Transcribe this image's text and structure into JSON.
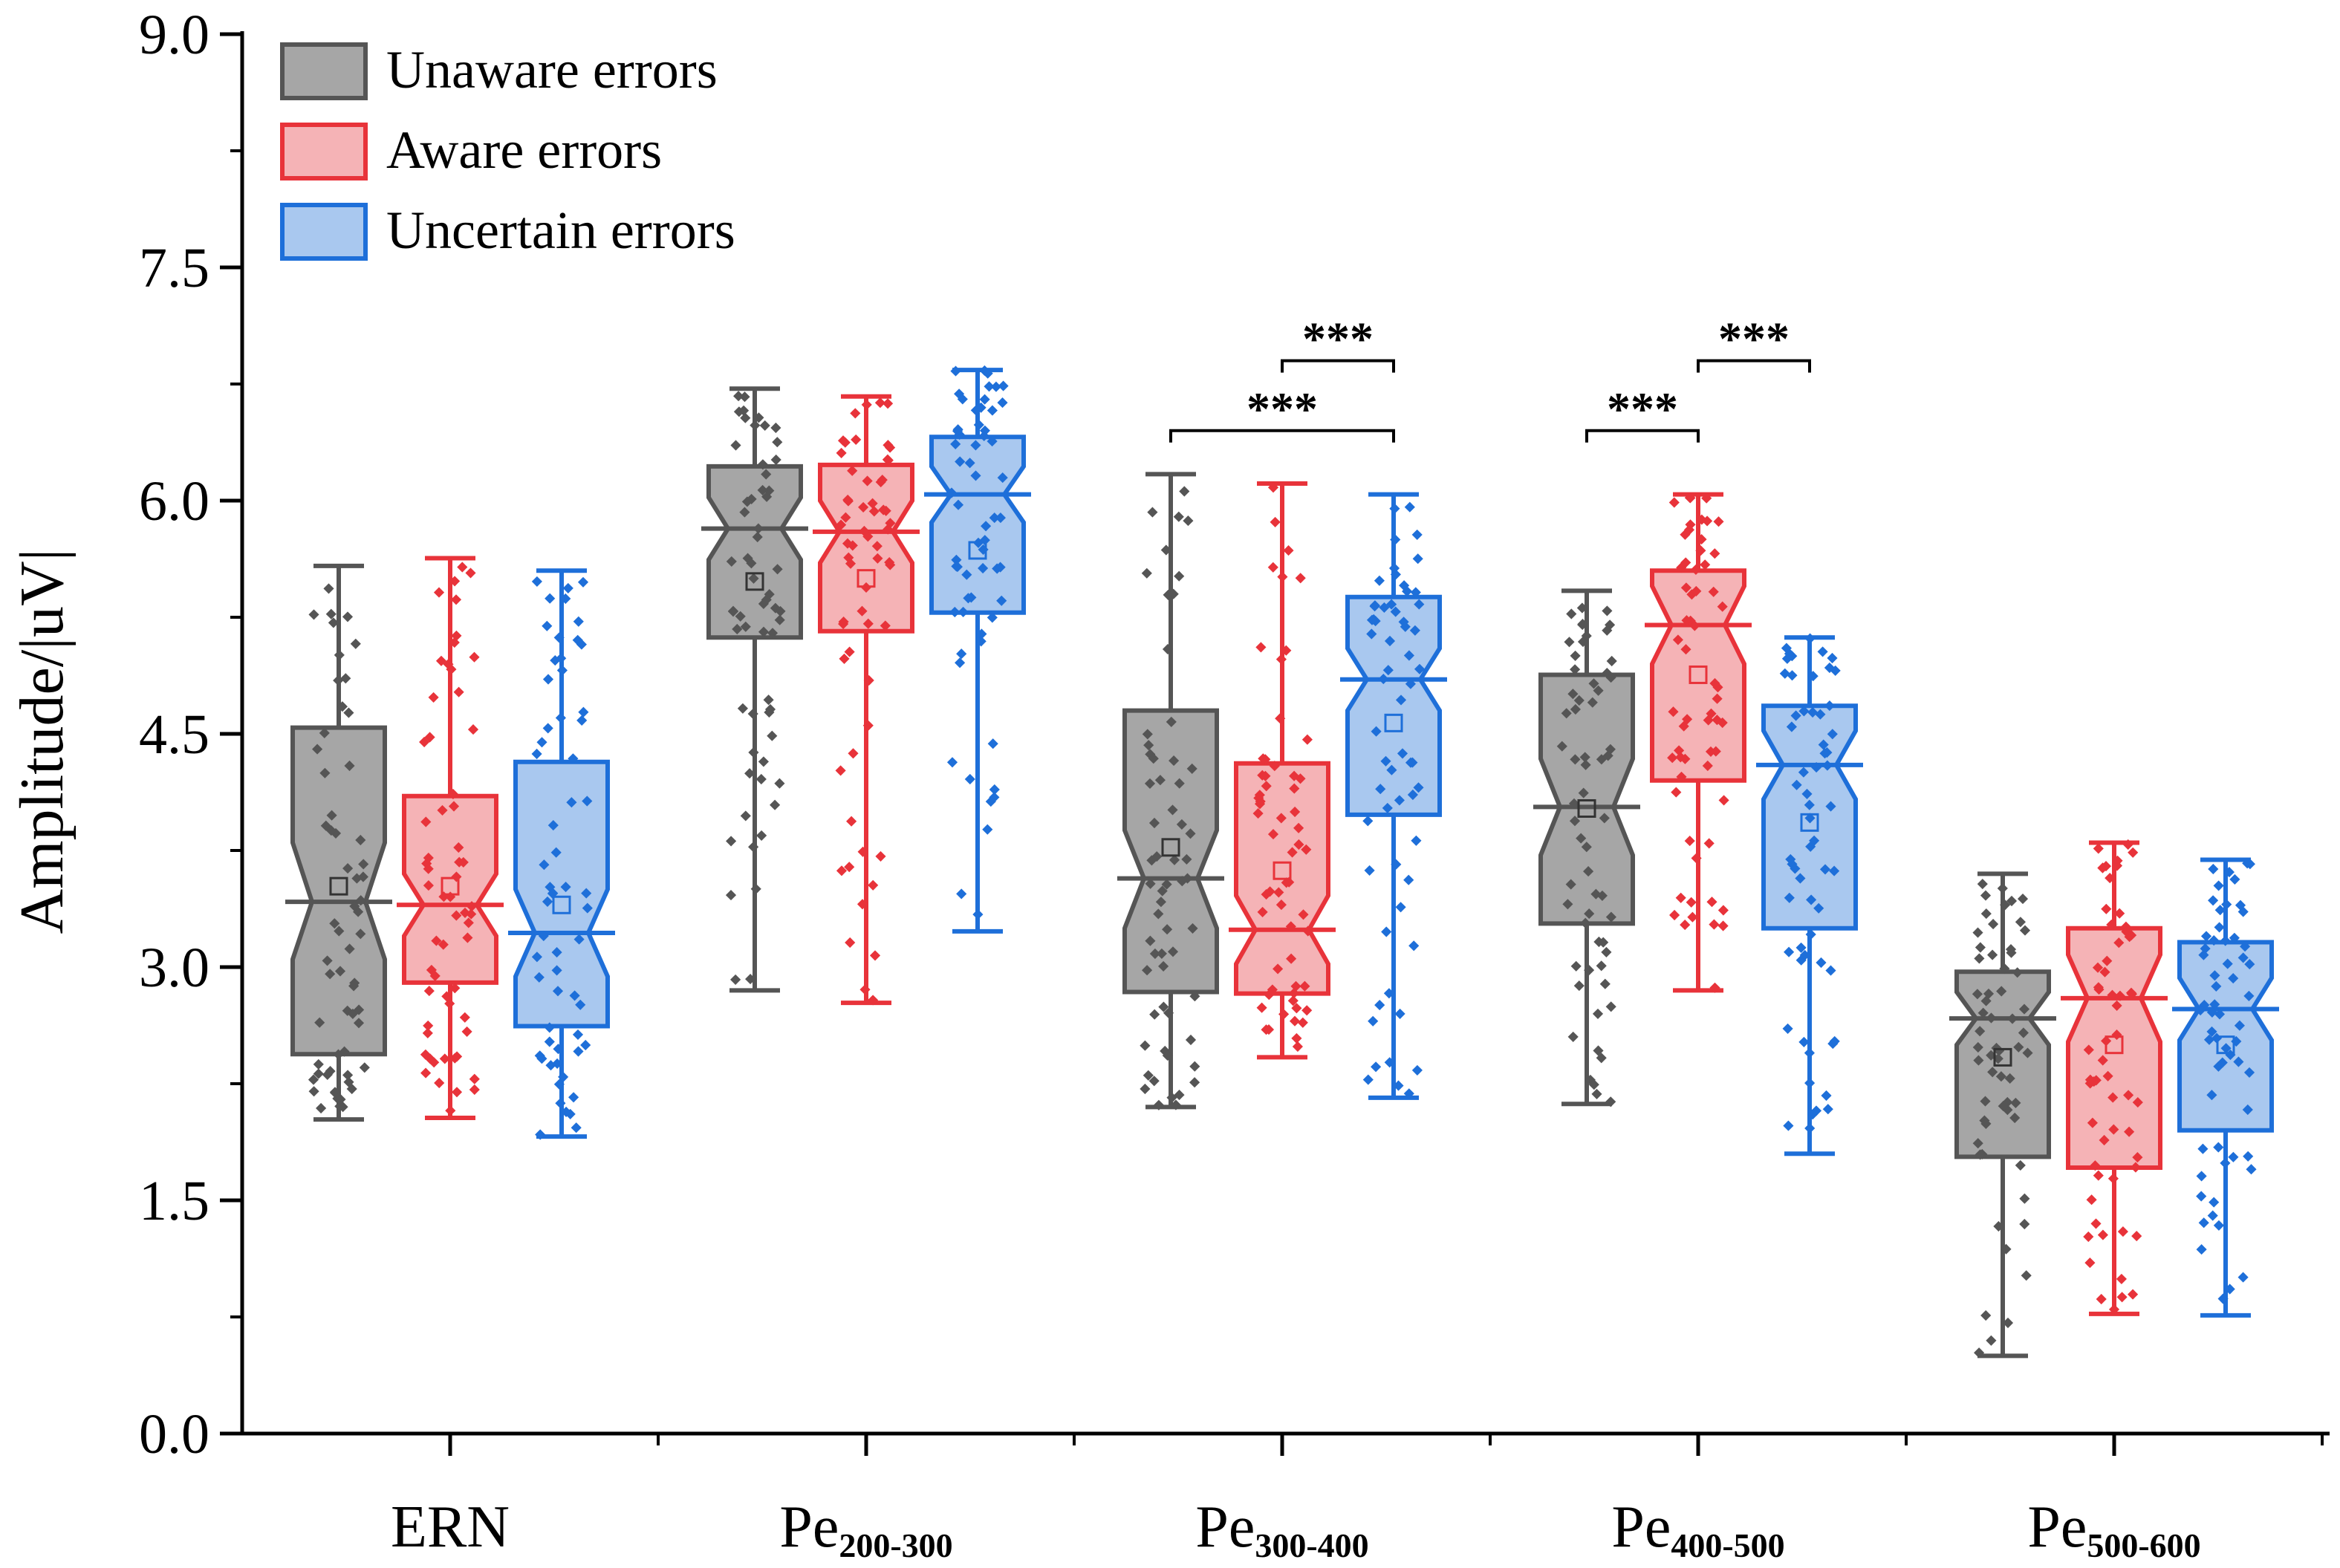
{
  "chart_data": {
    "type": "box",
    "ylabel": "Amplitude/|uV|",
    "ylim": [
      0,
      9.0
    ],
    "yticks": [
      "0.0",
      "1.5",
      "3.0",
      "4.5",
      "6.0",
      "7.5",
      "9.0"
    ],
    "categories": [
      {
        "main": "ERN",
        "sub": ""
      },
      {
        "main": "Pe",
        "sub": "200-300"
      },
      {
        "main": "Pe",
        "sub": "300-400"
      },
      {
        "main": "Pe",
        "sub": "400-500"
      },
      {
        "main": "Pe",
        "sub": "500-600"
      }
    ],
    "legend_position": "top-left",
    "series": [
      {
        "name": "Unaware errors",
        "color": "#555555",
        "fill": "#a6a6a6",
        "stats": [
          {
            "min": 2.02,
            "q1": 2.44,
            "median": 3.42,
            "q3": 4.54,
            "max": 5.58,
            "mean": 3.52,
            "notch_lo": 3.05,
            "notch_hi": 3.8
          },
          {
            "min": 2.85,
            "q1": 5.12,
            "median": 5.82,
            "q3": 6.22,
            "max": 6.72,
            "mean": 5.48,
            "notch_lo": 5.62,
            "notch_hi": 6.02
          },
          {
            "min": 2.1,
            "q1": 2.84,
            "median": 3.57,
            "q3": 4.65,
            "max": 6.17,
            "mean": 3.77,
            "notch_lo": 3.25,
            "notch_hi": 3.88
          },
          {
            "min": 2.12,
            "q1": 3.28,
            "median": 4.03,
            "q3": 4.88,
            "max": 5.42,
            "mean": 4.02,
            "notch_lo": 3.72,
            "notch_hi": 4.34
          },
          {
            "min": 0.5,
            "q1": 1.78,
            "median": 2.67,
            "q3": 2.97,
            "max": 3.6,
            "mean": 2.42,
            "notch_lo": 2.5,
            "notch_hi": 2.84
          }
        ]
      },
      {
        "name": "Aware errors",
        "color": "#e8333a",
        "fill": "#f5b3b6",
        "stats": [
          {
            "min": 2.03,
            "q1": 2.9,
            "median": 3.4,
            "q3": 4.1,
            "max": 5.63,
            "mean": 3.52,
            "notch_lo": 3.2,
            "notch_hi": 3.6
          },
          {
            "min": 2.77,
            "q1": 5.16,
            "median": 5.8,
            "q3": 6.23,
            "max": 6.67,
            "mean": 5.5,
            "notch_lo": 5.6,
            "notch_hi": 6.0
          },
          {
            "min": 2.42,
            "q1": 2.83,
            "median": 3.24,
            "q3": 4.31,
            "max": 6.11,
            "mean": 3.62,
            "notch_lo": 3.02,
            "notch_hi": 3.46
          },
          {
            "min": 2.85,
            "q1": 4.2,
            "median": 5.2,
            "q3": 5.55,
            "max": 6.04,
            "mean": 4.88,
            "notch_lo": 4.95,
            "notch_hi": 5.45
          },
          {
            "min": 0.77,
            "q1": 1.71,
            "median": 2.8,
            "q3": 3.25,
            "max": 3.8,
            "mean": 2.5,
            "notch_lo": 2.52,
            "notch_hi": 3.08
          }
        ]
      },
      {
        "name": "Uncertain errors",
        "color": "#1e6fd9",
        "fill": "#a9c8ef",
        "stats": [
          {
            "min": 1.91,
            "q1": 2.62,
            "median": 3.22,
            "q3": 4.32,
            "max": 5.55,
            "mean": 3.4,
            "notch_lo": 2.94,
            "notch_hi": 3.5
          },
          {
            "min": 3.23,
            "q1": 5.28,
            "median": 6.04,
            "q3": 6.41,
            "max": 6.84,
            "mean": 5.68,
            "notch_lo": 5.86,
            "notch_hi": 6.22
          },
          {
            "min": 2.16,
            "q1": 3.98,
            "median": 4.85,
            "q3": 5.38,
            "max": 6.04,
            "mean": 4.57,
            "notch_lo": 4.65,
            "notch_hi": 5.05
          },
          {
            "min": 1.8,
            "q1": 3.25,
            "median": 4.3,
            "q3": 4.68,
            "max": 5.12,
            "mean": 3.93,
            "notch_lo": 4.08,
            "notch_hi": 4.52
          },
          {
            "min": 0.76,
            "q1": 1.95,
            "median": 2.73,
            "q3": 3.16,
            "max": 3.69,
            "mean": 2.5,
            "notch_lo": 2.53,
            "notch_hi": 2.93
          }
        ]
      }
    ],
    "significance": [
      {
        "category": 2,
        "from_series": 1,
        "to_series": 2,
        "y": 6.9,
        "label": "***"
      },
      {
        "category": 2,
        "from_series": 0,
        "to_series": 2,
        "y": 6.45,
        "label": "***"
      },
      {
        "category": 3,
        "from_series": 1,
        "to_series": 2,
        "y": 6.9,
        "label": "***"
      },
      {
        "category": 3,
        "from_series": 0,
        "to_series": 1,
        "y": 6.45,
        "label": "***"
      }
    ]
  }
}
